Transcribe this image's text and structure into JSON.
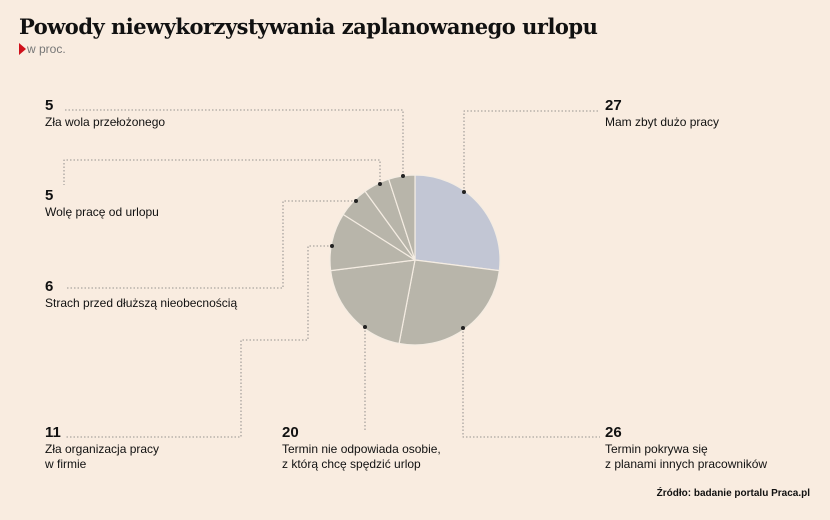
{
  "title": "Powody niewykorzystywania zaplanowanego urlopu",
  "subtitle": "w proc.",
  "source": "Źródło: badanie portalu Praca.pl",
  "colors": {
    "highlight": "#c2c6d4",
    "slice": "#b8b5aa",
    "background": "#f9ece0",
    "accent": "#d0101a"
  },
  "chart_data": {
    "type": "pie",
    "title": "Powody niewykorzystywania zaplanowanego urlopu",
    "unit": "w proc.",
    "categories": [
      "Mam zbyt dużo pracy",
      "Termin pokrywa się z planami innych pracowników",
      "Termin nie odpowiada osobie, z którą chcę spędzić urlop",
      "Zła organizacja pracy w firmie",
      "Strach przed dłuższą nieobecnością",
      "Wolę pracę od urlopu",
      "Zła wola przełożonego"
    ],
    "values": [
      27,
      26,
      20,
      11,
      6,
      5,
      5
    ],
    "labels": [
      {
        "value": "27",
        "lines": [
          "Mam zbyt dużo pracy"
        ]
      },
      {
        "value": "26",
        "lines": [
          "Termin pokrywa się",
          "z planami innych pracowników"
        ]
      },
      {
        "value": "20",
        "lines": [
          "Termin nie odpowiada osobie,",
          "z którą chcę spędzić urlop"
        ]
      },
      {
        "value": "11",
        "lines": [
          "Zła organizacja pracy",
          "w firmie"
        ]
      },
      {
        "value": "6",
        "lines": [
          "Strach przed dłuższą nieobecnością"
        ]
      },
      {
        "value": "5",
        "lines": [
          "Wolę pracę od urlopu"
        ]
      },
      {
        "value": "5",
        "lines": [
          "Zła wola przełożonego"
        ]
      }
    ]
  }
}
